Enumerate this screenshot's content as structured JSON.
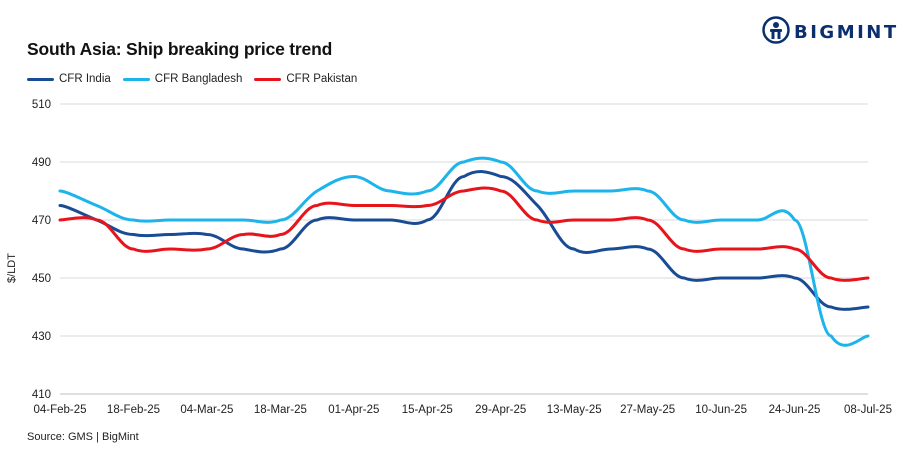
{
  "header": {
    "title": "South Asia: Ship breaking  price trend"
  },
  "logo": {
    "text": "BIGMINT",
    "icon": "bigmint-logo-icon",
    "color": "#0b2e6e"
  },
  "source": "Source: GMS | BigMint",
  "chart_data": {
    "type": "line",
    "title": "South Asia: Ship breaking  price trend",
    "xlabel": "",
    "ylabel": "$/LDT",
    "ylim": [
      410,
      510
    ],
    "yticks": [
      410,
      430,
      450,
      470,
      490,
      510
    ],
    "grid": true,
    "legend_position": "top-left",
    "categories": [
      "04-Feb-25",
      "11-Feb-25",
      "18-Feb-25",
      "25-Feb-25",
      "04-Mar-25",
      "11-Mar-25",
      "18-Mar-25",
      "25-Mar-25",
      "01-Apr-25",
      "08-Apr-25",
      "15-Apr-25",
      "22-Apr-25",
      "29-Apr-25",
      "06-May-25",
      "13-May-25",
      "20-May-25",
      "27-May-25",
      "03-Jun-25",
      "10-Jun-25",
      "17-Jun-25",
      "24-Jun-25",
      "01-Jul-25",
      "08-Jul-25"
    ],
    "tick_labels": [
      "04-Feb-25",
      "18-Feb-25",
      "04-Mar-25",
      "18-Mar-25",
      "01-Apr-25",
      "15-Apr-25",
      "29-Apr-25",
      "13-May-25",
      "27-May-25",
      "10-Jun-25",
      "24-Jun-25",
      "08-Jul-25"
    ],
    "series": [
      {
        "name": "CFR India",
        "color": "#1a4c96",
        "values": [
          475,
          470,
          465,
          465,
          465,
          460,
          460,
          470,
          470,
          470,
          470,
          485,
          485,
          475,
          460,
          460,
          460,
          450,
          450,
          450,
          450,
          440,
          440
        ]
      },
      {
        "name": "CFR Bangladesh",
        "color": "#1cb4ea",
        "values": [
          480,
          475,
          470,
          470,
          470,
          470,
          470,
          480,
          485,
          480,
          480,
          490,
          490,
          480,
          480,
          480,
          480,
          470,
          470,
          470,
          470,
          430,
          430
        ]
      },
      {
        "name": "CFR Pakistan",
        "color": "#e8141b",
        "values": [
          470,
          470,
          460,
          460,
          460,
          465,
          465,
          475,
          475,
          475,
          475,
          480,
          480,
          470,
          470,
          470,
          470,
          460,
          460,
          460,
          460,
          450,
          450
        ]
      }
    ]
  }
}
